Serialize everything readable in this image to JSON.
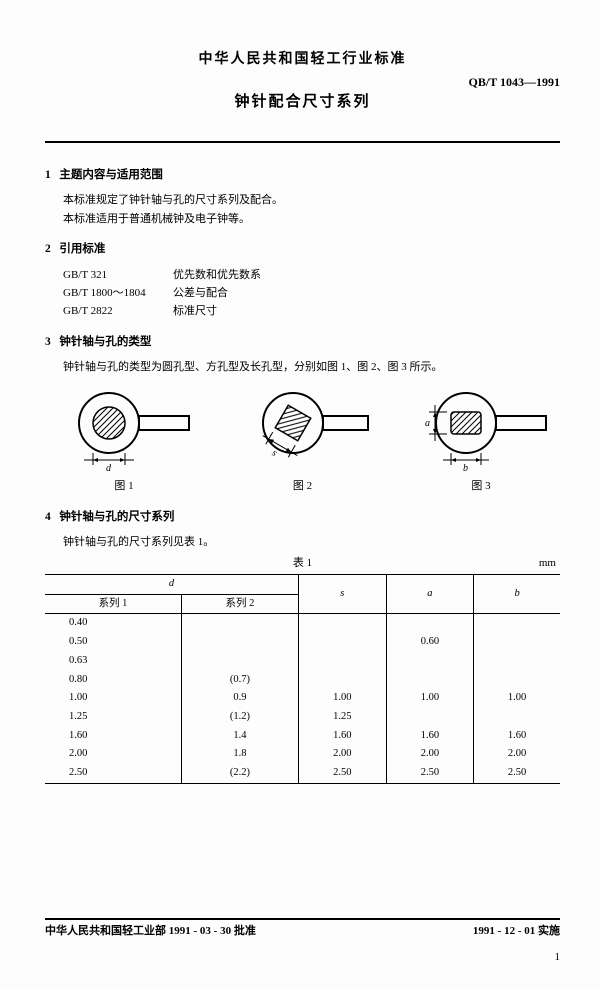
{
  "header": {
    "org": "中华人民共和国轻工行业标准",
    "code": "QB/T 1043—1991",
    "title": "钟针配合尺寸系列"
  },
  "sections": {
    "s1": {
      "num": "1",
      "title": "主题内容与适用范围",
      "p1": "本标准规定了钟针轴与孔的尺寸系列及配合。",
      "p2": "本标准适用于普通机械钟及电子钟等。"
    },
    "s2": {
      "num": "2",
      "title": "引用标准",
      "refs": [
        {
          "code": "GB/T 321",
          "name": "优先数和优先数系"
        },
        {
          "code": "GB/T 1800～1804",
          "name": "公差与配合"
        },
        {
          "code": "GB/T 2822",
          "name": "标准尺寸"
        }
      ]
    },
    "s3": {
      "num": "3",
      "title": "钟针轴与孔的类型",
      "p1": "钟针轴与孔的类型为圆孔型、方孔型及长孔型，分别如图 1、图 2、图 3 所示。",
      "caps": [
        "图 1",
        "图 2",
        "图 3"
      ],
      "dims": {
        "d": "d",
        "s": "s",
        "a": "a",
        "b": "b"
      }
    },
    "s4": {
      "num": "4",
      "title": "钟针轴与孔的尺寸系列",
      "p1": "钟针轴与孔的尺寸系列见表 1。",
      "tbl_title": "表 1",
      "tbl_unit": "mm",
      "cols": {
        "d": "d",
        "d1": "系列 1",
        "d2": "系列 2",
        "s": "s",
        "a": "a",
        "b": "b"
      },
      "rows": [
        {
          "d1": "0.40",
          "d2": "",
          "s": "",
          "a": "",
          "b": ""
        },
        {
          "d1": "0.50",
          "d2": "",
          "s": "",
          "a": "0.60",
          "b": ""
        },
        {
          "d1": "0.63",
          "d2": "",
          "s": "",
          "a": "",
          "b": ""
        },
        {
          "d1": "0.80",
          "d2": "(0.7)",
          "s": "",
          "a": "",
          "b": ""
        },
        {
          "d1": "1.00",
          "d2": "0.9",
          "s": "1.00",
          "a": "1.00",
          "b": "1.00"
        },
        {
          "d1": "1.25",
          "d2": "(1.2)",
          "s": "1.25",
          "a": "",
          "b": ""
        },
        {
          "d1": "1.60",
          "d2": "1.4",
          "s": "1.60",
          "a": "1.60",
          "b": "1.60"
        },
        {
          "d1": "2.00",
          "d2": "1.8",
          "s": "2.00",
          "a": "2.00",
          "b": "2.00"
        },
        {
          "d1": "2.50",
          "d2": "(2.2)",
          "s": "2.50",
          "a": "2.50",
          "b": "2.50"
        }
      ]
    }
  },
  "footer": {
    "left": "中华人民共和国轻工业部 1991 - 03 - 30 批准",
    "right": "1991 - 12 - 01 实施",
    "page": "1"
  },
  "style": {
    "hatch": "#555",
    "line": "#000"
  }
}
